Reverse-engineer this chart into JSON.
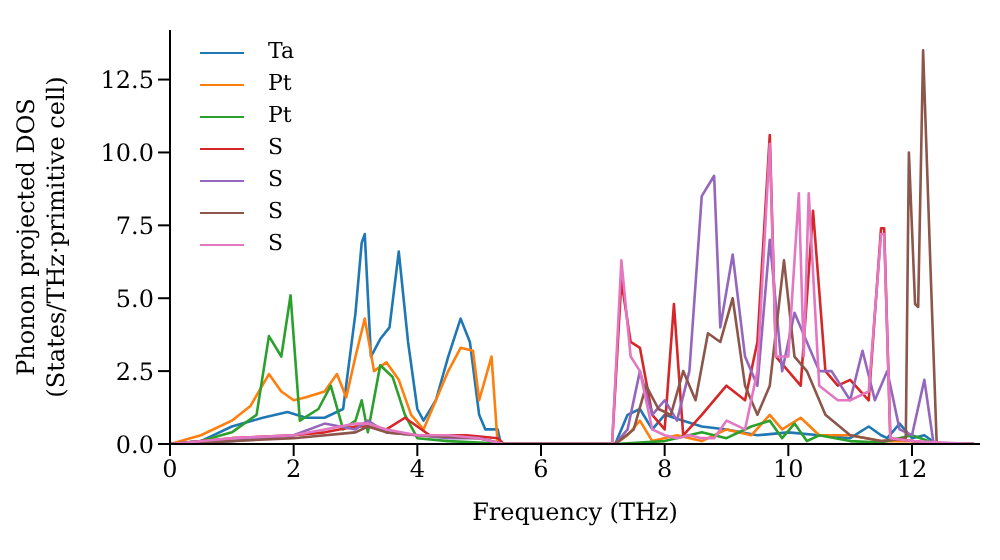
{
  "chart_data": {
    "type": "line",
    "xlabel": "Frequency (THz)",
    "ylabel": "Phonon projected DOS\n(States/THz·primitive cell)",
    "xlim": [
      0,
      13.1
    ],
    "ylim": [
      0,
      14.2
    ],
    "xticks": [
      0,
      2,
      4,
      6,
      8,
      10,
      12
    ],
    "yticks": [
      {
        "value": 0,
        "label": "0.0"
      },
      2.5,
      {
        "value": 5,
        "label": "5.0"
      },
      7.5,
      {
        "value": 10,
        "label": "10.0"
      },
      12.5
    ],
    "legend": "top left",
    "grid": false,
    "marker": "none",
    "line_style": "solid",
    "series": [
      {
        "name": "Ta",
        "color": "#1f77b4",
        "x": [
          0,
          0.5,
          1,
          1.5,
          1.9,
          2.2,
          2.5,
          2.8,
          3.0,
          3.1,
          3.15,
          3.25,
          3.4,
          3.55,
          3.7,
          3.85,
          4.0,
          4.1,
          4.3,
          4.5,
          4.7,
          4.85,
          5.0,
          5.1,
          5.3,
          5.35,
          5.4,
          7.2,
          7.4,
          7.6,
          7.8,
          8.0,
          8.3,
          8.6,
          9.0,
          9.5,
          10.0,
          10.5,
          11.0,
          11.3,
          11.5,
          11.6,
          11.8,
          12.0,
          12.2,
          12.4,
          13.0
        ],
        "values": [
          0,
          0.1,
          0.6,
          0.9,
          1.1,
          0.9,
          0.9,
          1.2,
          4.5,
          6.9,
          7.2,
          3.0,
          3.6,
          4.0,
          6.6,
          3.5,
          1.2,
          0.8,
          1.5,
          3.0,
          4.3,
          3.5,
          1.0,
          0.5,
          0.5,
          0,
          0,
          0,
          1.0,
          1.2,
          0.5,
          1.0,
          0.8,
          0.6,
          0.5,
          0.3,
          0.4,
          0.3,
          0.2,
          0.6,
          0.3,
          0.2,
          0.7,
          0.2,
          0.3,
          0,
          0
        ]
      },
      {
        "name": "Pt",
        "color": "#ff7f0e",
        "x": [
          0,
          0.5,
          1.0,
          1.3,
          1.6,
          1.8,
          2.0,
          2.2,
          2.5,
          2.7,
          2.85,
          3.0,
          3.15,
          3.3,
          3.5,
          3.7,
          3.9,
          4.1,
          4.3,
          4.5,
          4.7,
          4.9,
          5.0,
          5.2,
          5.3,
          5.4,
          7.2,
          7.4,
          7.6,
          7.8,
          8.2,
          8.6,
          9.0,
          9.4,
          9.7,
          9.9,
          10.2,
          10.5,
          11.0,
          11.5,
          12.0,
          12.4,
          13.0
        ],
        "values": [
          0,
          0.3,
          0.8,
          1.3,
          2.4,
          1.8,
          1.5,
          1.6,
          1.8,
          2.4,
          1.6,
          3.0,
          4.3,
          2.5,
          2.8,
          2.2,
          1.0,
          0.5,
          1.5,
          2.5,
          3.3,
          3.2,
          1.5,
          3.0,
          0,
          0,
          0,
          0.3,
          0.8,
          0.1,
          0.3,
          0.1,
          0.5,
          0.3,
          1.0,
          0.5,
          0.9,
          0.3,
          0.3,
          0.1,
          0.1,
          0,
          0
        ]
      },
      {
        "name": "Pt",
        "color": "#2ca02c",
        "x": [
          0,
          0.5,
          1.0,
          1.4,
          1.6,
          1.8,
          1.95,
          2.1,
          2.4,
          2.6,
          2.8,
          3.0,
          3.1,
          3.2,
          3.4,
          3.6,
          3.8,
          4.0,
          4.5,
          5.0,
          5.4,
          7.2,
          8.0,
          8.6,
          9.0,
          9.4,
          9.7,
          9.9,
          10.1,
          10.3,
          10.5,
          11.0,
          11.5,
          12.0,
          12.4,
          13.0
        ],
        "values": [
          0,
          0.1,
          0.4,
          1.0,
          3.7,
          3.0,
          5.1,
          0.8,
          1.2,
          2.0,
          0.5,
          0.8,
          1.5,
          0.4,
          2.7,
          2.3,
          1.0,
          0.2,
          0.1,
          0.05,
          0,
          0,
          0.1,
          0.4,
          0.2,
          0.6,
          0.8,
          0.2,
          0.7,
          0.1,
          0.3,
          0.1,
          0.05,
          0.3,
          0,
          0
        ]
      },
      {
        "name": "S",
        "color": "#d62728",
        "x": [
          0,
          1,
          2,
          2.5,
          3.0,
          3.2,
          3.5,
          3.8,
          4.2,
          4.8,
          5.3,
          5.4,
          7.0,
          7.15,
          7.3,
          7.45,
          7.6,
          7.8,
          8.0,
          8.15,
          8.3,
          8.6,
          9.0,
          9.3,
          9.5,
          9.7,
          9.8,
          10.0,
          10.2,
          10.4,
          10.6,
          10.8,
          11.0,
          11.3,
          11.5,
          11.55,
          11.65,
          12.0,
          12.4,
          13.0
        ],
        "values": [
          0,
          0.2,
          0.3,
          0.4,
          0.6,
          0.6,
          0.5,
          0.9,
          0.3,
          0.3,
          0.2,
          0,
          0,
          0,
          5.6,
          3.5,
          3.3,
          1.0,
          0.5,
          4.8,
          0.3,
          1.0,
          2.0,
          1.5,
          3.5,
          10.6,
          3.0,
          2.5,
          2.0,
          8.0,
          2.5,
          2.0,
          2.2,
          1.5,
          7.4,
          7.4,
          0.2,
          0.1,
          0,
          0
        ]
      },
      {
        "name": "S",
        "color": "#9467bd",
        "x": [
          0,
          1,
          2,
          2.5,
          3.0,
          3.2,
          3.5,
          4.0,
          4.5,
          5.0,
          5.4,
          7.2,
          7.4,
          7.6,
          7.8,
          8.0,
          8.2,
          8.4,
          8.6,
          8.8,
          8.9,
          9.1,
          9.3,
          9.5,
          9.7,
          9.9,
          10.1,
          10.3,
          10.5,
          10.7,
          11.0,
          11.2,
          11.4,
          11.6,
          11.8,
          12.0,
          12.2,
          12.35,
          13.0
        ],
        "values": [
          0,
          0.1,
          0.3,
          0.7,
          0.5,
          0.8,
          0.4,
          0.3,
          0.2,
          0.2,
          0,
          0,
          0.5,
          2.5,
          1.0,
          1.5,
          0.8,
          2.5,
          8.5,
          9.2,
          4.0,
          6.5,
          3.0,
          2.0,
          7.0,
          2.5,
          4.5,
          3.5,
          2.5,
          2.5,
          1.5,
          3.2,
          1.5,
          2.5,
          0.5,
          0.3,
          2.2,
          0,
          0
        ]
      },
      {
        "name": "S",
        "color": "#8c564b",
        "x": [
          0,
          1,
          2,
          3.0,
          3.2,
          3.5,
          4.0,
          5.0,
          5.4,
          7.2,
          7.5,
          7.7,
          7.9,
          8.1,
          8.3,
          8.5,
          8.7,
          8.9,
          9.1,
          9.3,
          9.5,
          9.7,
          9.93,
          10.1,
          10.3,
          10.6,
          11.0,
          11.5,
          11.9,
          11.95,
          12.05,
          12.1,
          12.18,
          12.3,
          12.4,
          13.0
        ],
        "values": [
          0,
          0.1,
          0.2,
          0.4,
          0.6,
          0.4,
          0.3,
          0.2,
          0,
          0,
          0.5,
          2.0,
          1.2,
          1.0,
          2.5,
          1.5,
          3.8,
          3.5,
          5.0,
          2.0,
          1.0,
          2.0,
          6.3,
          3.0,
          2.5,
          1.0,
          0.3,
          0.1,
          0.2,
          10.0,
          4.8,
          4.7,
          13.5,
          6.0,
          0,
          0
        ]
      },
      {
        "name": "S",
        "color": "#e377c2",
        "x": [
          0,
          1,
          2,
          2.5,
          3.0,
          3.2,
          3.5,
          4.0,
          4.5,
          5.0,
          5.4,
          7.0,
          7.15,
          7.3,
          7.45,
          7.6,
          7.8,
          8.0,
          8.2,
          8.4,
          8.6,
          8.8,
          9.0,
          9.3,
          9.5,
          9.7,
          9.8,
          10.0,
          10.17,
          10.25,
          10.33,
          10.5,
          10.8,
          11.0,
          11.3,
          11.5,
          11.55,
          11.65,
          12.0,
          13.0
        ],
        "values": [
          0,
          0.2,
          0.3,
          0.5,
          0.7,
          0.7,
          0.5,
          0.3,
          0.3,
          0.2,
          0,
          0,
          0,
          6.3,
          3.0,
          2.5,
          0.5,
          0.3,
          0.2,
          0.3,
          0.2,
          0.2,
          0.8,
          0.5,
          2.5,
          10.3,
          3.0,
          3.0,
          8.6,
          3.0,
          8.6,
          2.0,
          1.5,
          1.5,
          1.8,
          7.2,
          7.2,
          0.2,
          0.1,
          0
        ]
      }
    ]
  }
}
